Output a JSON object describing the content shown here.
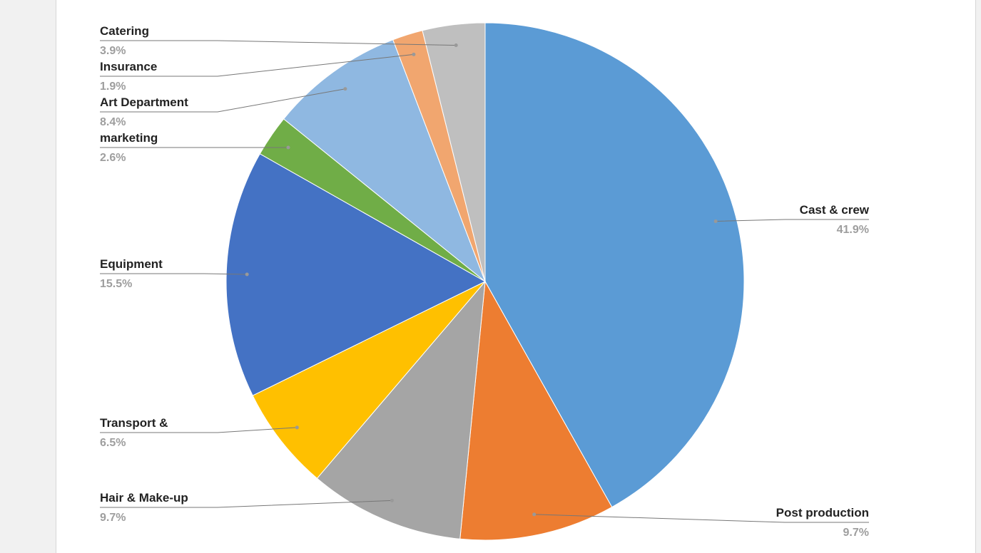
{
  "chart_data": {
    "type": "pie",
    "categories": [
      "Cast & crew",
      "Post production",
      "Hair & Make-up",
      "Transport &",
      "Equipment",
      "marketing",
      "Art Department",
      "Insurance",
      "Catering"
    ],
    "values": [
      41.9,
      9.7,
      9.7,
      6.5,
      15.5,
      2.6,
      8.4,
      1.9,
      3.9
    ],
    "value_labels": [
      "41.9%",
      "9.7%",
      "9.7%",
      "6.5%",
      "15.5%",
      "2.6%",
      "8.4%",
      "1.9%",
      "3.9%"
    ],
    "colors": [
      "#5b9bd5",
      "#ed7d31",
      "#a5a5a5",
      "#ffc000",
      "#4472c4",
      "#70ad47",
      "#8fb8e1",
      "#f1a66f",
      "#bfbfbf"
    ]
  }
}
